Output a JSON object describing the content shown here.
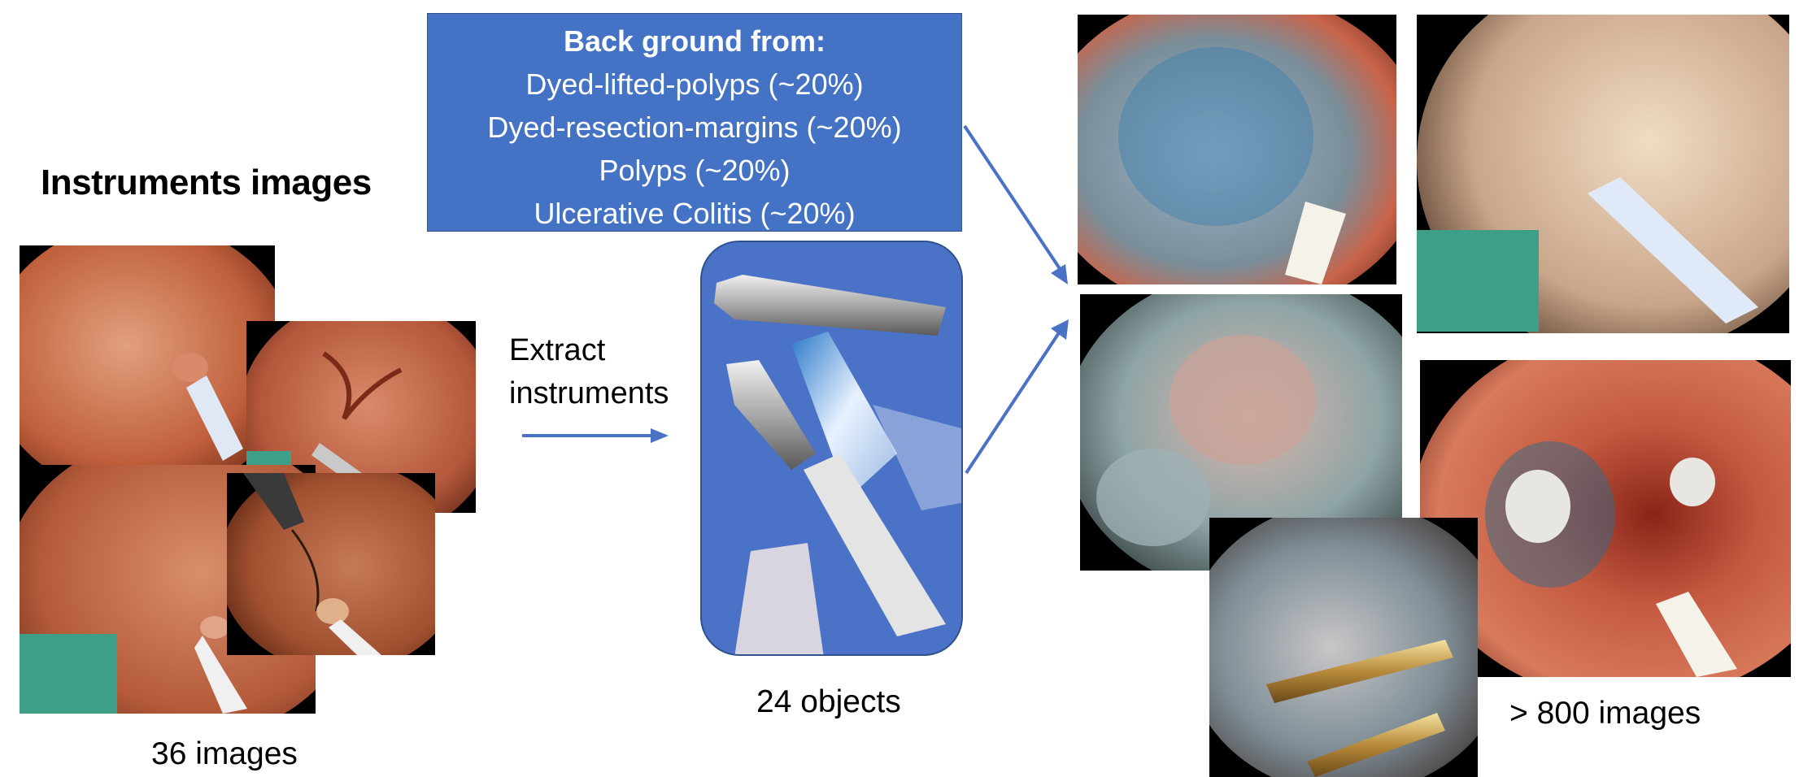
{
  "left": {
    "title": "Instruments images",
    "caption": "36 images"
  },
  "background_box": {
    "heading": "Back ground from:",
    "items": [
      "Dyed-lifted-polyps (~20%)",
      "Dyed-resection-margins (~20%)",
      "Polyps (~20%)",
      "Ulcerative Colitis (~20%)"
    ]
  },
  "extract": {
    "line1": "Extract",
    "line2": "instruments"
  },
  "middle": {
    "caption": "24 objects"
  },
  "right": {
    "caption": "> 800 images"
  },
  "colors": {
    "accent_blue": "#4472c4",
    "arrow_blue": "#4a72c4",
    "overlay_green": "#3e9f88"
  },
  "icons": [
    "arrow-right-icon",
    "arrow-down-right-icon",
    "arrow-up-right-icon"
  ]
}
